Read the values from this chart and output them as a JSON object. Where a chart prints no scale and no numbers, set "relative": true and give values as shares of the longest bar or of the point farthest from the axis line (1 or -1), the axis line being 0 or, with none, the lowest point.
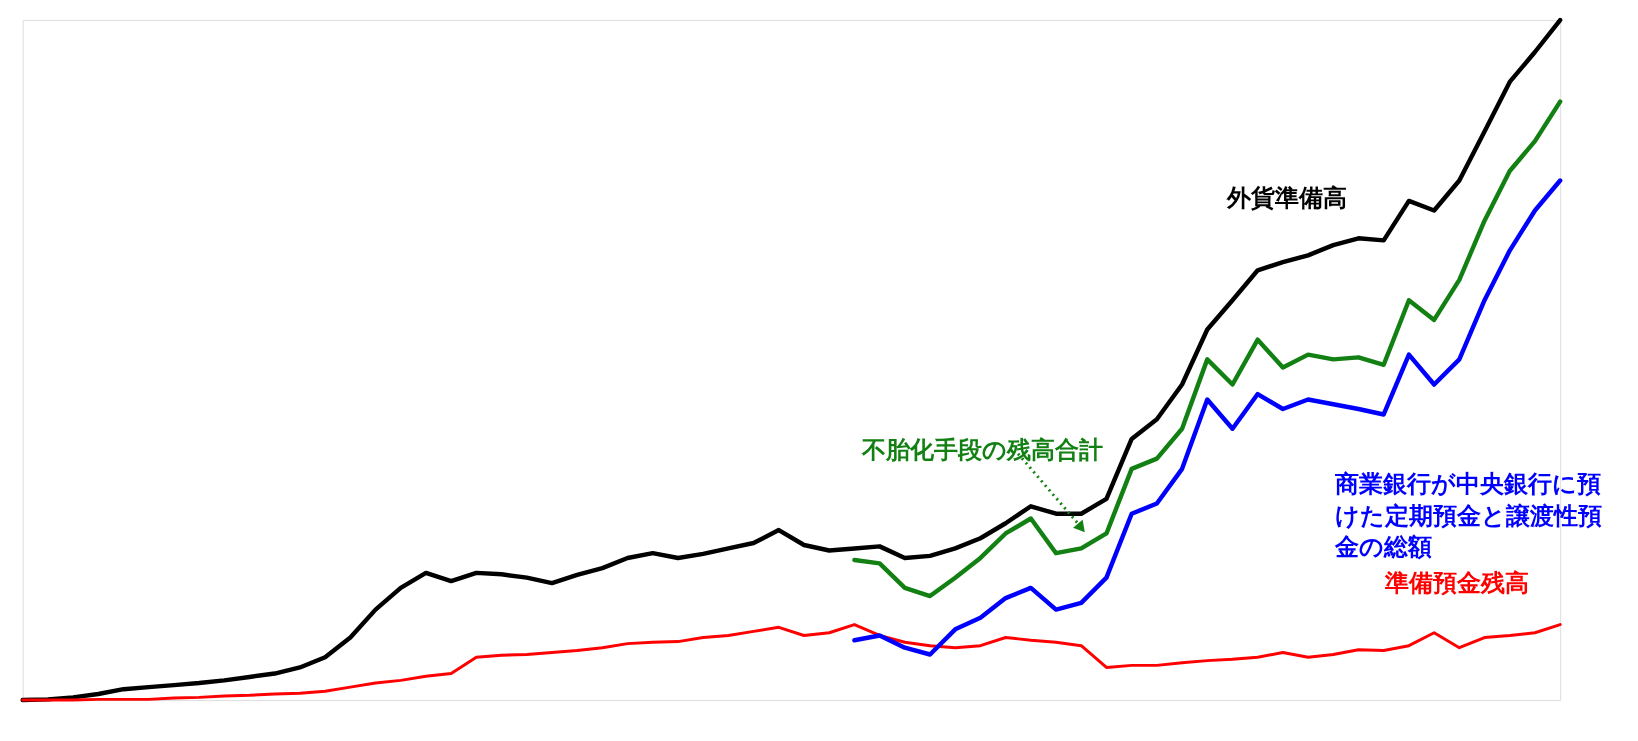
{
  "chart_data": {
    "type": "line",
    "relative": true,
    "marker": "none",
    "line_style": "solid",
    "categories": [
      null,
      null,
      null,
      null,
      null,
      null,
      null,
      null,
      null,
      null,
      null,
      null,
      null,
      null,
      null,
      null,
      null,
      null,
      null,
      null,
      null,
      null,
      null,
      null,
      null,
      null,
      null,
      null,
      null,
      null,
      null,
      null,
      null,
      null,
      null,
      null,
      null,
      null,
      null,
      null,
      null,
      null,
      null,
      null,
      null,
      null,
      null,
      null,
      null,
      null,
      null,
      null,
      null,
      null,
      null,
      null,
      null,
      null,
      null,
      null,
      null,
      null
    ],
    "series": [
      {
        "name": "外貨準備高",
        "color": "#000000",
        "values": [
          0,
          0.001,
          0.004,
          0.009,
          0.016,
          0.019,
          0.022,
          0.025,
          0.029,
          0.034,
          0.039,
          0.048,
          0.063,
          0.092,
          0.133,
          0.165,
          0.187,
          0.175,
          0.187,
          0.185,
          0.18,
          0.172,
          0.184,
          0.194,
          0.209,
          0.216,
          0.209,
          0.215,
          0.223,
          0.231,
          0.25,
          0.228,
          0.22,
          0.223,
          0.226,
          0.209,
          0.212,
          0.223,
          0.238,
          0.26,
          0.285,
          0.274,
          0.274,
          0.296,
          0.384,
          0.413,
          0.464,
          0.545,
          0.588,
          0.632,
          0.644,
          0.654,
          0.669,
          0.679,
          0.676,
          0.734,
          0.72,
          0.764,
          0.836,
          0.909,
          0.953,
          1.0
        ]
      },
      {
        "name": "不胎化手段の残高合計",
        "color": "#138013",
        "values": [
          null,
          null,
          null,
          null,
          null,
          null,
          null,
          null,
          null,
          null,
          null,
          null,
          null,
          null,
          null,
          null,
          null,
          null,
          null,
          null,
          null,
          null,
          null,
          null,
          null,
          null,
          null,
          null,
          null,
          null,
          null,
          null,
          null,
          0.206,
          0.201,
          0.165,
          0.153,
          0.18,
          0.209,
          0.245,
          0.267,
          0.216,
          0.223,
          0.245,
          0.34,
          0.355,
          0.399,
          0.501,
          0.464,
          0.53,
          0.489,
          0.508,
          0.501,
          0.504,
          0.493,
          0.588,
          0.559,
          0.618,
          0.705,
          0.778,
          0.822,
          0.88
        ]
      },
      {
        "name": "商業銀行が中央銀行に預けた定期預金と譲渡性預金の総額",
        "color": "#0000ff",
        "values": [
          null,
          null,
          null,
          null,
          null,
          null,
          null,
          null,
          null,
          null,
          null,
          null,
          null,
          null,
          null,
          null,
          null,
          null,
          null,
          null,
          null,
          null,
          null,
          null,
          null,
          null,
          null,
          null,
          null,
          null,
          null,
          null,
          null,
          0.088,
          0.095,
          0.077,
          0.067,
          0.104,
          0.121,
          0.15,
          0.165,
          0.133,
          0.143,
          0.18,
          0.274,
          0.289,
          0.34,
          0.442,
          0.399,
          0.45,
          0.428,
          0.442,
          0.435,
          0.428,
          0.42,
          0.508,
          0.464,
          0.501,
          0.588,
          0.661,
          0.72,
          0.764
        ]
      },
      {
        "name": "準備預金残高",
        "color": "#ff0000",
        "values": [
          0,
          0,
          0,
          0.001,
          0.001,
          0.001,
          0.003,
          0.004,
          0.006,
          0.007,
          0.009,
          0.01,
          0.013,
          0.019,
          0.025,
          0.029,
          0.035,
          0.039,
          0.063,
          0.066,
          0.067,
          0.07,
          0.073,
          0.077,
          0.083,
          0.085,
          0.086,
          0.092,
          0.095,
          0.101,
          0.107,
          0.095,
          0.099,
          0.111,
          0.095,
          0.085,
          0.08,
          0.077,
          0.08,
          0.092,
          0.088,
          0.085,
          0.08,
          0.048,
          0.051,
          0.051,
          0.055,
          0.058,
          0.06,
          0.063,
          0.07,
          0.063,
          0.067,
          0.074,
          0.073,
          0.08,
          0.099,
          0.077,
          0.092,
          0.095,
          0.099,
          0.111
        ]
      }
    ]
  }
}
